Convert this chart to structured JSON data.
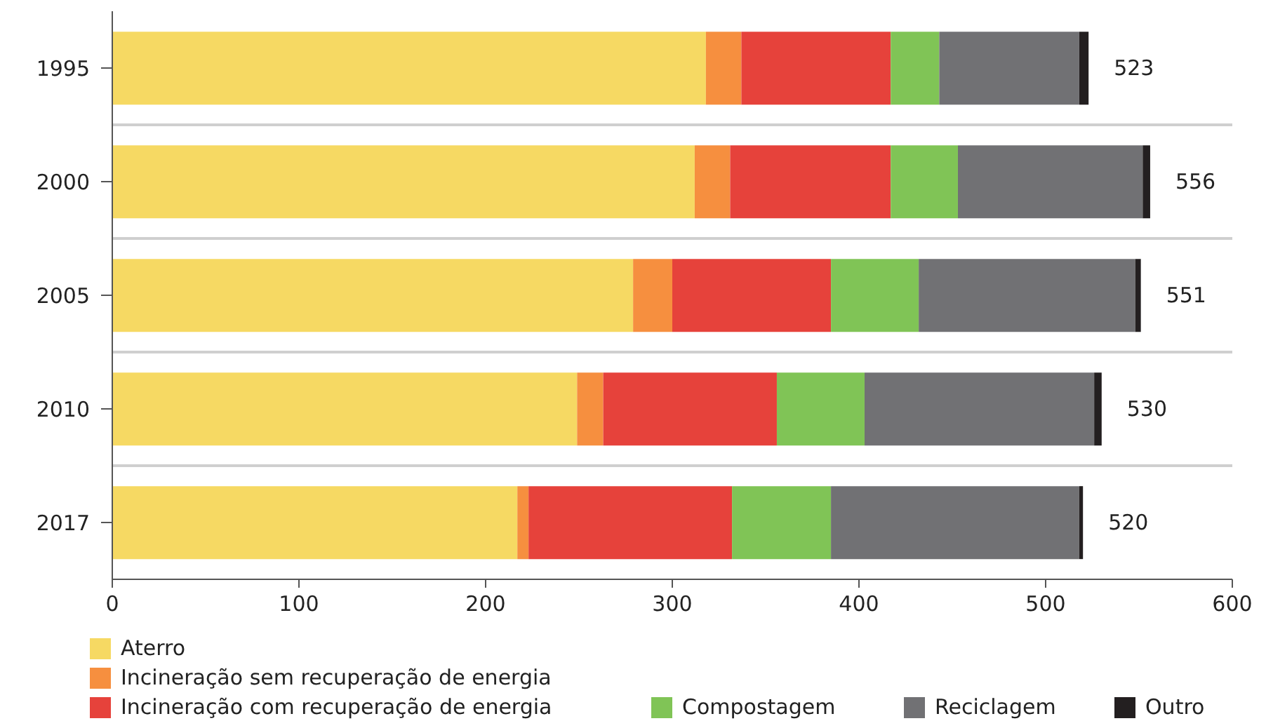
{
  "chart_data": {
    "type": "bar",
    "orientation": "horizontal",
    "stacked": true,
    "categories": [
      "1995",
      "2000",
      "2005",
      "2010",
      "2017"
    ],
    "series": [
      {
        "name": "Aterro",
        "color": "#f6d963",
        "values": [
          318,
          312,
          279,
          249,
          217
        ]
      },
      {
        "name": "Incineração sem recuperação de energia",
        "color": "#f68f3f",
        "values": [
          19,
          19,
          21,
          14,
          6
        ]
      },
      {
        "name": "Incineração com recuperação de energia",
        "color": "#e6423b",
        "values": [
          80,
          86,
          85,
          93,
          109
        ]
      },
      {
        "name": "Compostagem",
        "color": "#80c456",
        "values": [
          26,
          36,
          47,
          47,
          53
        ]
      },
      {
        "name": "Reciclagem",
        "color": "#717174",
        "values": [
          75,
          99,
          116,
          123,
          133
        ]
      },
      {
        "name": "Outro",
        "color": "#231f20",
        "values": [
          5,
          4,
          3,
          4,
          2
        ]
      }
    ],
    "totals": [
      "523",
      "556",
      "551",
      "530",
      "520"
    ],
    "xlim": [
      0,
      600
    ],
    "xticks": [
      0,
      100,
      200,
      300,
      400,
      500,
      600
    ],
    "grid": "y",
    "legend": "bottom"
  }
}
